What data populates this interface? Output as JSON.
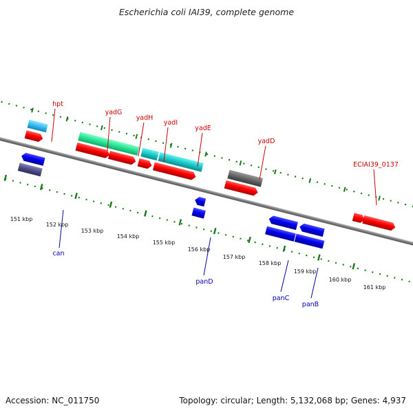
{
  "title": "Escherichia coli IAI39, complete genome",
  "footer": {
    "accession": "Accession: NC_011750",
    "summary": "Topology: circular; Length: 5,132,068 bp; Genes: 4,937"
  },
  "colors": {
    "forward_label": "#cc0000",
    "reverse_label": "#0000aa",
    "backbone": "#808080",
    "tick_dots": "#1a7a1a"
  },
  "ticks": [
    "151 kbp",
    "152 kbp",
    "153 kbp",
    "154 kbp",
    "155 kbp",
    "156 kbp",
    "157 kbp",
    "158 kbp",
    "159 kbp",
    "160 kbp",
    "161 kbp"
  ],
  "forward_genes": [
    {
      "label": "hpt"
    },
    {
      "label": "yadG"
    },
    {
      "label": "yadH"
    },
    {
      "label": "yadI"
    },
    {
      "label": "yadE"
    },
    {
      "label": "yadD"
    },
    {
      "label": "ECIAI39_0137"
    }
  ],
  "reverse_genes": [
    {
      "label": "can"
    },
    {
      "label": "panD"
    },
    {
      "label": "panC"
    },
    {
      "label": "panB"
    }
  ]
}
